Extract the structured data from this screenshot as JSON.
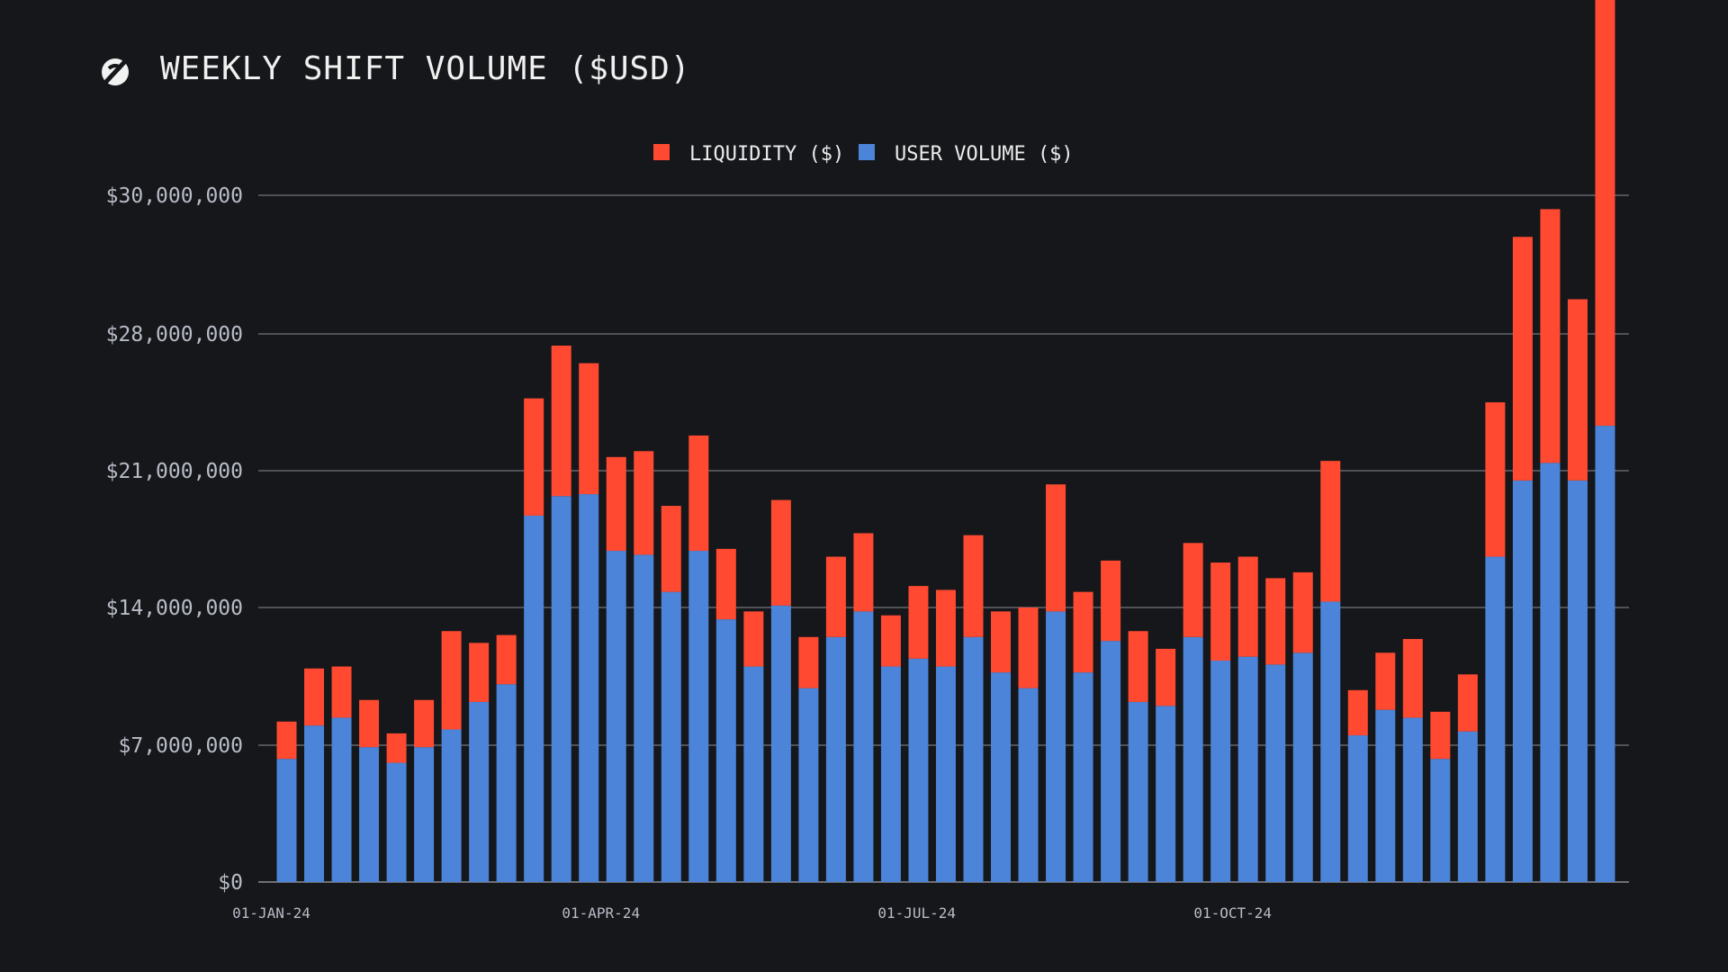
{
  "title": "WEEKLY SHIFT VOLUME ($USD)",
  "colors": {
    "background": "#16171b",
    "liquidity": "#ff4930",
    "user_volume": "#4b84d8",
    "grid": "#8a8d94",
    "text": "#b8bcc6"
  },
  "logo_icon": "sideshift-s-logo-icon",
  "chart_data": {
    "type": "bar",
    "stacked": true,
    "title": "WEEKLY SHIFT VOLUME ($USD)",
    "legend": {
      "placement": "top-center",
      "entries": [
        "LIQUIDITY ($)",
        "USER VOLUME ($)"
      ]
    },
    "grid": true,
    "y_tick_values": [
      0,
      7000000,
      14000000,
      21000000,
      28000000,
      30000000
    ],
    "y_tick_labels": [
      "$0",
      "$7,000,000",
      "$14,000,000",
      "$21,000,000",
      "$28,000,000",
      "$30,000,000"
    ],
    "x_tick_labels": [
      "01-JAN-24",
      "01-APR-24",
      "01-JUL-24",
      "01-OCT-24"
    ],
    "x_tick_label_weeks": [
      0,
      12,
      23.5,
      35
    ],
    "weeks": 49,
    "series": [
      {
        "name": "USER VOLUME ($)",
        "color": "#4b84d8",
        "values": [
          6300000,
          8000000,
          8400000,
          6900000,
          6100000,
          6900000,
          7800000,
          9200000,
          10100000,
          18700000,
          19700000,
          19800000,
          16900000,
          16700000,
          14800000,
          16900000,
          13400000,
          11000000,
          14100000,
          9900000,
          12500000,
          13800000,
          11000000,
          11400000,
          11000000,
          12500000,
          10700000,
          9900000,
          13800000,
          10700000,
          12300000,
          9200000,
          9000000,
          12500000,
          11300000,
          11500000,
          11100000,
          11700000,
          14300000,
          7500000,
          8800000,
          8400000,
          6300000,
          7700000,
          16600000,
          20500000,
          21400000,
          20500000,
          23300000
        ]
      },
      {
        "name": "LIQUIDITY ($)",
        "color": "#ff4930",
        "values": [
          1900000,
          2900000,
          2600000,
          2400000,
          1500000,
          2400000,
          5000000,
          3000000,
          2500000,
          6000000,
          7700000,
          6700000,
          4800000,
          5300000,
          4400000,
          5900000,
          3600000,
          2800000,
          5400000,
          2600000,
          4100000,
          4000000,
          2600000,
          3700000,
          3900000,
          5200000,
          3100000,
          4100000,
          6500000,
          4100000,
          4100000,
          3600000,
          2900000,
          4800000,
          5000000,
          5100000,
          4400000,
          4100000,
          7200000,
          2300000,
          2900000,
          4000000,
          2400000,
          2900000,
          7900000,
          8900000,
          8400000,
          8000000,
          9600000
        ]
      }
    ]
  }
}
